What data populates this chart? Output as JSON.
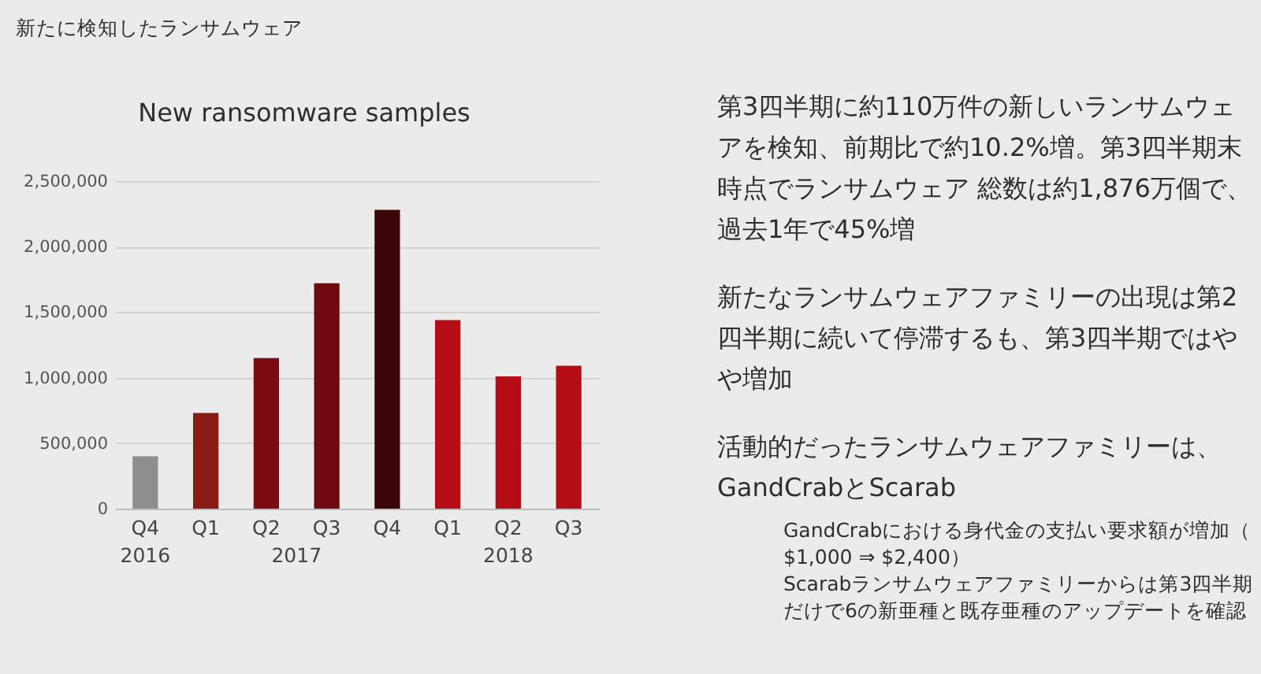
{
  "chart_data": {
    "type": "bar",
    "title": "新たに検知したランサムウェア",
    "subtitle": "New ransomware samples",
    "categories": [
      "Q4",
      "Q1",
      "Q2",
      "Q3",
      "Q4",
      "Q1",
      "Q2",
      "Q3"
    ],
    "values": [
      400000,
      730000,
      1150000,
      1720000,
      2280000,
      1440000,
      1010000,
      1090000
    ],
    "colors": [
      "#8e8e8e",
      "#8a1b12",
      "#7c0c12",
      "#6f0a10",
      "#3a0608",
      "#b50d15",
      "#b50d15",
      "#b50d15"
    ],
    "ylim": [
      0,
      2500000
    ],
    "yticks": [
      0,
      {
        "value": 500000,
        "label": "500,000"
      },
      {
        "value": 1000000,
        "label": "1,000,000"
      },
      {
        "value": 1500000,
        "label": "1,500,000"
      },
      {
        "value": 2000000,
        "label": "2,000,000"
      },
      {
        "value": 2500000,
        "label": "2,500,000"
      }
    ],
    "grid": "y",
    "annotations": [
      "2016",
      "2017",
      "2018",
      "第3四半期に約110万件の新しいランサムウェアを検知、前期比で約10.2%増。第3四半期末時点でランサムウェア 総数は約1,876万個で、過去1年で45%増",
      "新たなランサムウェアファミリーの出現は第2四半期に続いて停滞するも、第3四半期ではやや増加",
      "活動的だったランサムウェアファミリーは、GandCrabとScarab",
      "GandCrabにおける身代金の支払い要求額が増加（$1,000 ⇒ $2,400）",
      "Scarabランサムウェアファミリーからは第3四半期だけで6の新亜種と既存亜種のアップデートを確認"
    ]
  }
}
